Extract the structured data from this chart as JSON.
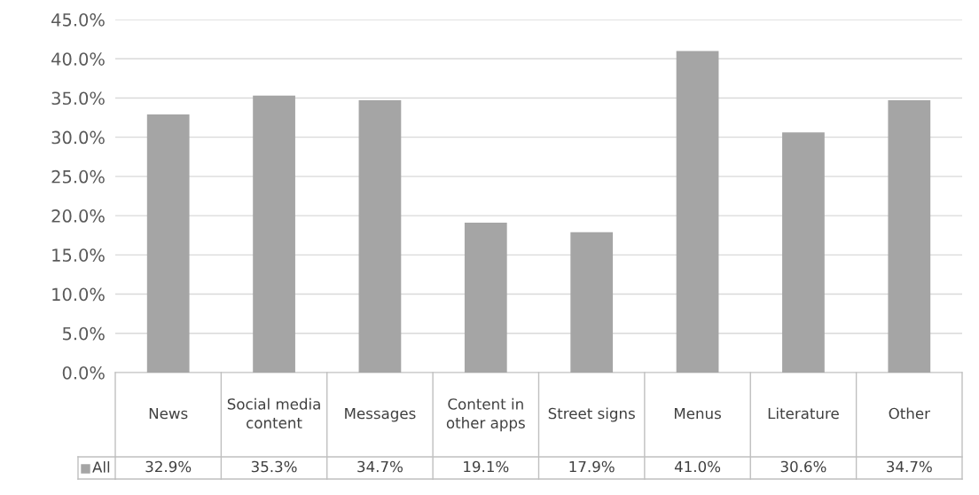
{
  "chart_data": {
    "type": "bar",
    "categories": [
      "News",
      "Social media content",
      "Messages",
      "Content in other apps",
      "Street signs",
      "Menus",
      "Literature",
      "Other"
    ],
    "series": [
      {
        "name": "All",
        "color": "#a5a5a5",
        "values": [
          32.9,
          35.3,
          34.7,
          19.1,
          17.9,
          41.0,
          30.6,
          34.7
        ],
        "value_labels": [
          "32.9%",
          "35.3%",
          "34.7%",
          "19.1%",
          "17.9%",
          "41.0%",
          "30.6%",
          "34.7%"
        ]
      }
    ],
    "ylim": [
      0,
      45
    ],
    "yticks": [
      {
        "value": 0,
        "label": "0.0%"
      },
      {
        "value": 5,
        "label": "5.0%"
      },
      {
        "value": 10,
        "label": "10.0%"
      },
      {
        "value": 15,
        "label": "15.0%"
      },
      {
        "value": 20,
        "label": "20.0%"
      },
      {
        "value": 25,
        "label": "25.0%"
      },
      {
        "value": 30,
        "label": "30.0%"
      },
      {
        "value": 35,
        "label": "35.0%"
      },
      {
        "value": 40,
        "label": "40.0%"
      },
      {
        "value": 45,
        "label": "45.0%"
      }
    ],
    "grid": "y",
    "legend": "bottom"
  }
}
